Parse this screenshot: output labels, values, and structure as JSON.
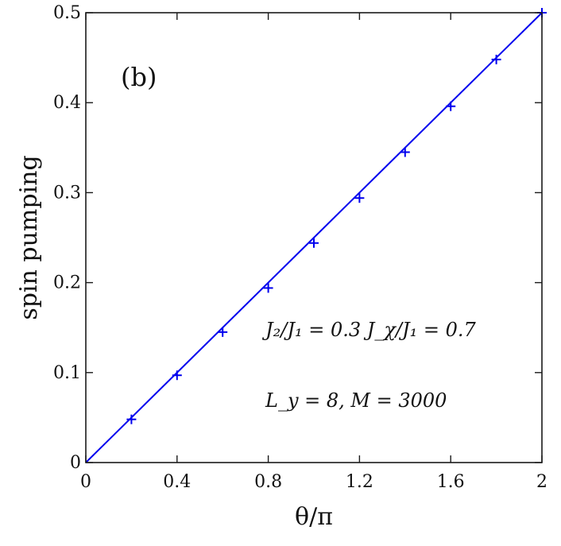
{
  "chart_data": {
    "type": "line",
    "panel_label": "(b)",
    "xlabel": "θ/π",
    "ylabel": "spin pumping",
    "xlim": [
      0,
      2
    ],
    "ylim": [
      0,
      0.5
    ],
    "xticks": [
      0,
      0.4,
      0.8,
      1.2,
      1.6,
      2
    ],
    "xtick_labels": [
      "0",
      "0.4",
      "0.8",
      "1.2",
      "1.6",
      "2"
    ],
    "yticks": [
      0,
      0.1,
      0.2,
      0.3,
      0.4,
      0.5
    ],
    "ytick_labels": [
      "0",
      "0.1",
      "0.2",
      "0.3",
      "0.4",
      "0.5"
    ],
    "grid": false,
    "series": [
      {
        "style": "line",
        "color": "#0000ee",
        "x": [
          0,
          2
        ],
        "y": [
          0,
          0.5
        ]
      },
      {
        "style": "markers",
        "marker": "plus",
        "color": "#0000ee",
        "x": [
          0.2,
          0.4,
          0.6,
          0.8,
          1.0,
          1.2,
          1.4,
          1.6,
          1.8,
          2.0
        ],
        "y": [
          0.048,
          0.097,
          0.145,
          0.194,
          0.244,
          0.294,
          0.345,
          0.396,
          0.448,
          0.5
        ]
      }
    ],
    "annotations": [
      "J₂/J₁ = 0.3    J_χ/J₁ = 0.7",
      "L_y = 8, M = 3000"
    ]
  }
}
